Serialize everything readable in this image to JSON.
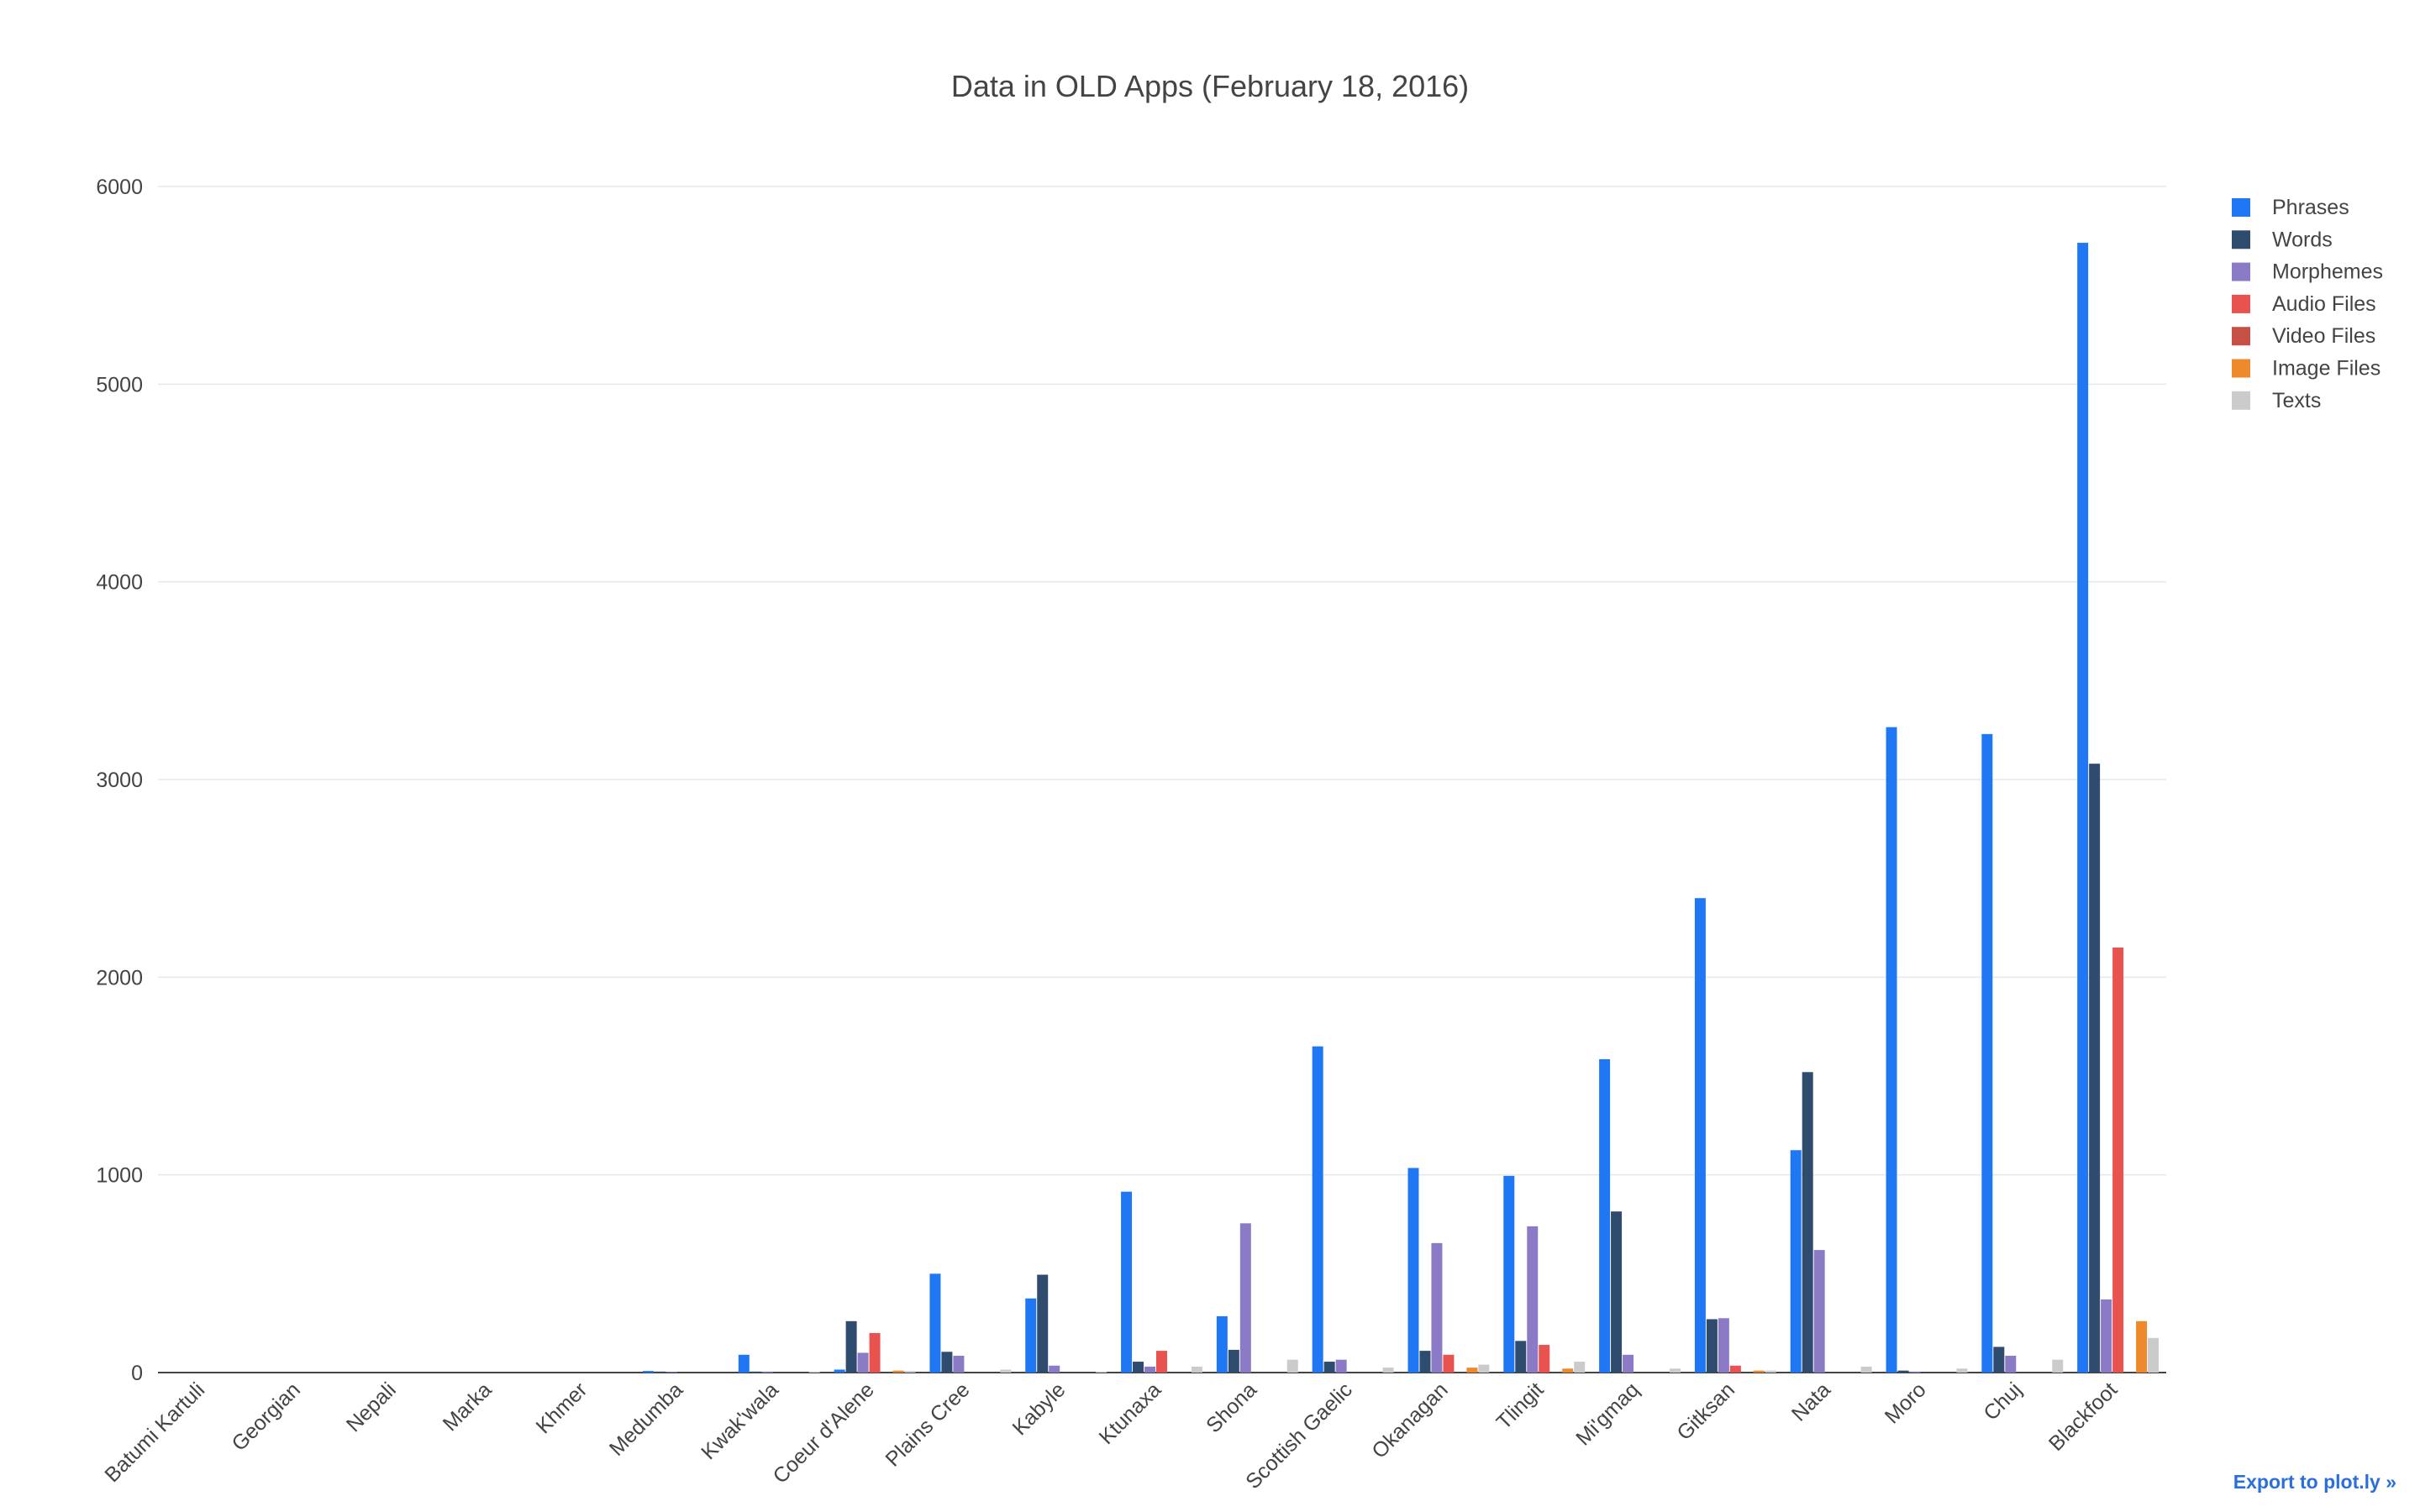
{
  "chart_data": {
    "type": "bar",
    "title": "Data in OLD Apps (February 18, 2016)",
    "xlabel": "",
    "ylabel": "",
    "ylim": [
      0,
      6000
    ],
    "yticks": [
      0,
      1000,
      2000,
      3000,
      4000,
      5000,
      6000
    ],
    "grid": true,
    "legend_position": "top-right",
    "categories": [
      "Batumi Kartuli",
      "Georgian",
      "Nepali",
      "Marka",
      "Khmer",
      "Medumba",
      "Kwak'wala",
      "Coeur d'Alene",
      "Plains Cree",
      "Kabyle",
      "Ktunaxa",
      "Shona",
      "Scottish Gaelic",
      "Okanagan",
      "Tlingit",
      "Mi'gmaq",
      "Gitksan",
      "Nata",
      "Moro",
      "Chuj",
      "Blackfoot"
    ],
    "series": [
      {
        "name": "Phrases",
        "color": "#1f77f4",
        "values": [
          0,
          0,
          0,
          0,
          0,
          8,
          90,
          15,
          500,
          375,
          915,
          285,
          1650,
          1035,
          995,
          1585,
          2400,
          1125,
          3265,
          3230,
          5715
        ]
      },
      {
        "name": "Words",
        "color": "#2f4b6e",
        "values": [
          0,
          0,
          0,
          0,
          0,
          5,
          5,
          260,
          105,
          495,
          55,
          115,
          55,
          110,
          160,
          815,
          270,
          1520,
          10,
          130,
          3080
        ]
      },
      {
        "name": "Morphemes",
        "color": "#8b7bc6",
        "values": [
          0,
          0,
          0,
          0,
          0,
          3,
          5,
          100,
          85,
          35,
          30,
          755,
          65,
          655,
          740,
          90,
          275,
          620,
          5,
          85,
          370
        ]
      },
      {
        "name": "Audio Files",
        "color": "#e8524f",
        "values": [
          0,
          0,
          0,
          0,
          0,
          0,
          0,
          200,
          0,
          0,
          110,
          0,
          0,
          90,
          140,
          0,
          35,
          0,
          0,
          0,
          2150
        ]
      },
      {
        "name": "Video Files",
        "color": "#c65046",
        "values": [
          0,
          0,
          0,
          0,
          0,
          0,
          0,
          0,
          0,
          0,
          0,
          0,
          0,
          0,
          0,
          0,
          0,
          0,
          0,
          0,
          0
        ]
      },
      {
        "name": "Image Files",
        "color": "#ee8a2c",
        "values": [
          0,
          0,
          0,
          0,
          0,
          0,
          0,
          10,
          0,
          0,
          0,
          0,
          0,
          25,
          20,
          0,
          10,
          0,
          0,
          0,
          260
        ]
      },
      {
        "name": "Texts",
        "color": "#cbcbcb",
        "values": [
          0,
          0,
          0,
          0,
          0,
          0,
          5,
          8,
          15,
          5,
          30,
          65,
          25,
          40,
          55,
          20,
          10,
          30,
          20,
          65,
          175
        ]
      }
    ]
  },
  "export": {
    "label": "Export to plot.ly »"
  }
}
